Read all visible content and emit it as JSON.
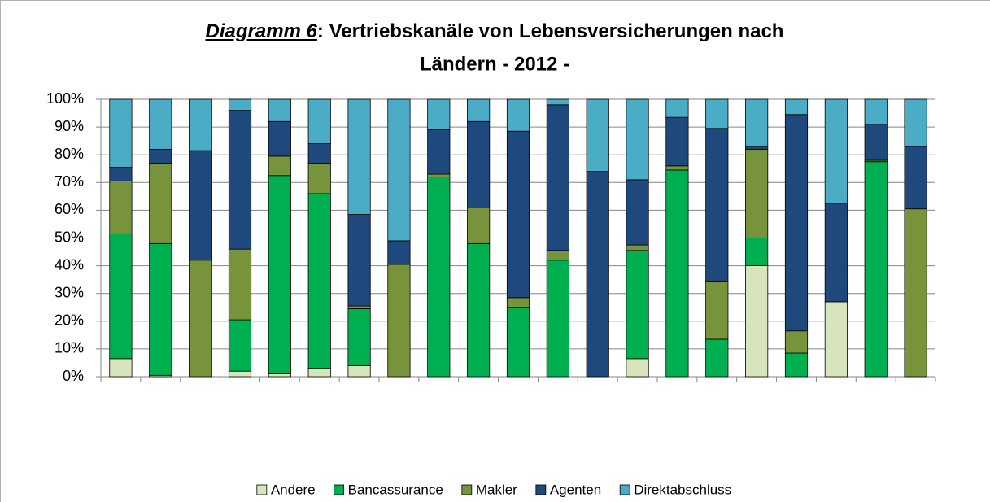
{
  "chart_data": {
    "type": "stacked_bar",
    "title": [
      "Diagramm 6",
      ": Vertriebskanäle von Lebensversicherungen nach",
      "Ländern - 2012 -"
    ],
    "categories": [
      null,
      null,
      null,
      null,
      null,
      null,
      null,
      null,
      null,
      null,
      null,
      null,
      null,
      null,
      null,
      null,
      null,
      null,
      null,
      null,
      null
    ],
    "series": [
      {
        "name": "Andere",
        "color": "#d8e4bc",
        "values": [
          6.5,
          0.5,
          0,
          2,
          1,
          3,
          4,
          0,
          0,
          0,
          0,
          0,
          0,
          6.5,
          0,
          0,
          40,
          0,
          27,
          0,
          0
        ]
      },
      {
        "name": "Bancassurance",
        "color": "#00b050",
        "values": [
          45,
          47.5,
          0,
          18.5,
          71.5,
          63,
          20.5,
          0,
          72,
          48,
          25,
          42,
          0,
          39,
          74.5,
          13.5,
          10,
          8.5,
          0,
          77.5,
          0
        ]
      },
      {
        "name": "Makler",
        "color": "#77933c",
        "values": [
          19,
          29,
          42,
          25.5,
          7,
          11,
          1,
          40.5,
          1,
          13,
          3.5,
          3.5,
          0,
          2,
          1.5,
          21,
          32,
          8,
          0,
          0.5,
          60.5
        ]
      },
      {
        "name": "Agenten",
        "color": "#1f497d",
        "values": [
          5,
          5,
          39.5,
          50,
          12.5,
          7,
          33,
          8.5,
          16,
          31,
          60,
          52.5,
          74,
          23.5,
          17.5,
          55,
          1,
          78,
          35.5,
          13,
          22.5
        ]
      },
      {
        "name": "Direktabschluss",
        "color": "#4bacc6",
        "values": [
          24.5,
          18,
          18.5,
          4,
          8,
          16,
          41.5,
          51,
          11,
          8,
          11.5,
          2,
          26,
          29,
          6.5,
          10.5,
          17,
          5.5,
          37.5,
          9,
          17
        ]
      }
    ],
    "ylim": [
      0,
      100
    ],
    "yticks": [
      {
        "value": 0,
        "label": "0%"
      },
      {
        "value": 10,
        "label": "10%"
      },
      {
        "value": 20,
        "label": "20%"
      },
      {
        "value": 30,
        "label": "30%"
      },
      {
        "value": 40,
        "label": "40%"
      },
      {
        "value": 50,
        "label": "50%"
      },
      {
        "value": 60,
        "label": "60%"
      },
      {
        "value": 70,
        "label": "70%"
      },
      {
        "value": 80,
        "label": "80%"
      },
      {
        "value": 90,
        "label": "90%"
      },
      {
        "value": 100,
        "label": "100%"
      }
    ],
    "grid": true,
    "legend": "bottom"
  }
}
